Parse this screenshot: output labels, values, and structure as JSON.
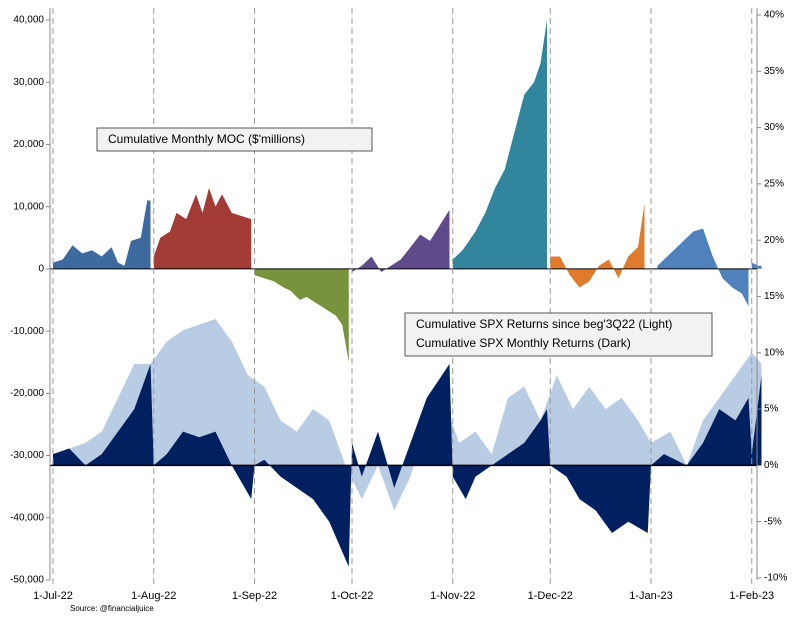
{
  "chart_data": {
    "type": "area",
    "annotations": [
      "Cumulative Monthly MOC ($'millions)"
    ],
    "source": "Source: @financialjuice",
    "xlim": [
      0,
      218
    ],
    "xticks": [
      {
        "value": 0,
        "label": "1-Jul-22"
      },
      {
        "value": 31,
        "label": "1-Aug-22"
      },
      {
        "value": 62,
        "label": "1-Sep-22"
      },
      {
        "value": 92,
        "label": "1-Oct-22"
      },
      {
        "value": 123,
        "label": "1-Nov-22"
      },
      {
        "value": 153,
        "label": "1-Dec-22"
      },
      {
        "value": 184,
        "label": "1-Jan-23"
      },
      {
        "value": 215,
        "label": "1-Feb-23"
      }
    ],
    "ylim": [
      -50000,
      40000
    ],
    "yticks": [
      {
        "value": 40000,
        "label": "40,000"
      },
      {
        "value": 30000,
        "label": "30,000"
      },
      {
        "value": 20000,
        "label": "20,000"
      },
      {
        "value": 10000,
        "label": "10,000"
      },
      0,
      {
        "value": -10000,
        "label": "-10,000"
      },
      {
        "value": -20000,
        "label": "-20,000"
      },
      {
        "value": -30000,
        "label": "-30,000"
      },
      {
        "value": -40000,
        "label": "-40,000"
      },
      {
        "value": -50000,
        "label": "-50,000"
      }
    ],
    "y2lim": [
      -10,
      40
    ],
    "y2ticks": [
      {
        "value": 40,
        "label": "40%"
      },
      {
        "value": 35,
        "label": "35%"
      },
      {
        "value": 30,
        "label": "30%"
      },
      {
        "value": 25,
        "label": "25%"
      },
      {
        "value": 20,
        "label": "20%"
      },
      {
        "value": 15,
        "label": "15%"
      },
      {
        "value": 10,
        "label": "10%"
      },
      {
        "value": 5,
        "label": "5%"
      },
      {
        "value": 0,
        "label": "0%"
      },
      {
        "value": -5,
        "label": "-5%"
      },
      {
        "value": -10,
        "label": "-10%"
      }
    ],
    "series": [
      {
        "name": "Cumulative SPX Returns since beg'3Q22 (Light)",
        "color": "#b8cce4",
        "axis": "y2",
        "x": [
          0,
          5,
          10,
          15,
          20,
          25,
          30,
          35,
          40,
          45,
          50,
          55,
          60,
          65,
          70,
          75,
          80,
          85,
          90,
          95,
          100,
          105,
          110,
          115,
          120,
          125,
          130,
          135,
          140,
          145,
          150,
          155,
          160,
          165,
          170,
          175,
          180,
          184,
          190,
          195,
          200,
          205,
          210,
          215,
          218
        ],
        "values": [
          1,
          1.5,
          2,
          3,
          6,
          9,
          9,
          11,
          12,
          12.5,
          13,
          11,
          8,
          7,
          4,
          3,
          5,
          4,
          0,
          -3,
          0,
          -4,
          -1,
          4,
          6,
          2,
          3,
          1,
          6,
          7,
          4,
          8,
          5,
          7,
          5,
          6,
          4,
          2,
          3,
          0,
          4,
          6,
          8,
          10,
          9
        ]
      },
      {
        "name": "Cumulative SPX Monthly Returns (Dark)",
        "color": "#002060",
        "axis": "y2",
        "x": [
          0,
          5,
          10,
          15,
          20,
          25,
          30,
          31,
          35,
          40,
          45,
          50,
          55,
          61,
          62,
          65,
          70,
          75,
          80,
          85,
          91,
          92,
          95,
          100,
          105,
          110,
          115,
          122,
          123,
          127,
          130,
          135,
          140,
          145,
          150,
          152,
          153,
          158,
          162,
          167,
          172,
          177,
          183,
          184,
          188,
          195,
          200,
          205,
          210,
          214,
          215,
          218
        ],
        "values": [
          1,
          1.5,
          0,
          1,
          3,
          5,
          9,
          0,
          1,
          3,
          2.5,
          3,
          0,
          -3,
          0,
          0.5,
          -1,
          -2,
          -3,
          -5,
          -9,
          2,
          -1,
          3,
          -2,
          2,
          6,
          9,
          -1,
          -3,
          -1,
          0,
          1,
          2,
          4,
          5,
          0,
          -1,
          -3,
          -4,
          -6,
          -5,
          -6,
          0,
          1,
          0,
          2,
          5,
          4,
          6,
          1,
          8
        ]
      },
      {
        "color": "#3d6a9f",
        "x": [
          0,
          3,
          6,
          9,
          12,
          15,
          18,
          20,
          22,
          24,
          27,
          29,
          30
        ],
        "values": [
          1000,
          1500,
          3800,
          2500,
          3000,
          2000,
          3500,
          1000,
          500,
          4500,
          5000,
          11000,
          11000
        ]
      },
      {
        "color": "#a33b36",
        "x": [
          31,
          33,
          36,
          38,
          41,
          44,
          46,
          48,
          50,
          52,
          55,
          58,
          61
        ],
        "values": [
          2000,
          5000,
          6000,
          9000,
          8000,
          12000,
          9000,
          13000,
          10000,
          12000,
          9000,
          8500,
          8000
        ]
      },
      {
        "color": "#77933c",
        "x": [
          62,
          65,
          68,
          71,
          73,
          76,
          78,
          81,
          84,
          87,
          89,
          91
        ],
        "values": [
          -1000,
          -1500,
          -2000,
          -3000,
          -3500,
          -5000,
          -4500,
          -5500,
          -6500,
          -7500,
          -9000,
          -15000
        ]
      },
      {
        "color": "#5f4a8b",
        "x": [
          92,
          95,
          98,
          101,
          104,
          107,
          110,
          113,
          116,
          119,
          122
        ],
        "values": [
          -500,
          500,
          2000,
          -500,
          500,
          1500,
          3500,
          5500,
          4500,
          7000,
          9500
        ]
      },
      {
        "color": "#31859c",
        "x": [
          123,
          126,
          130,
          133,
          136,
          139,
          142,
          145,
          148,
          150,
          152
        ],
        "values": [
          1500,
          3000,
          6000,
          9000,
          13000,
          16000,
          22000,
          28000,
          30000,
          33000,
          40000
        ]
      },
      {
        "color": "#e07b2b",
        "x": [
          153,
          156,
          159,
          162,
          165,
          168,
          171,
          174,
          177,
          180,
          182
        ],
        "values": [
          2000,
          2000,
          -1000,
          -3000,
          -2000,
          500,
          1500,
          -1500,
          2000,
          3500,
          10500
        ]
      },
      {
        "color": "#4f81bd",
        "x": [
          186,
          190,
          194,
          197,
          200,
          203,
          206,
          209,
          212,
          214
        ],
        "values": [
          500,
          2500,
          4500,
          6000,
          6500,
          2000,
          -1500,
          -3000,
          -4000,
          -6000
        ]
      },
      {
        "color": "#4f81bd",
        "x": [
          215,
          217,
          218
        ],
        "values": [
          1000,
          500,
          500
        ]
      }
    ]
  }
}
